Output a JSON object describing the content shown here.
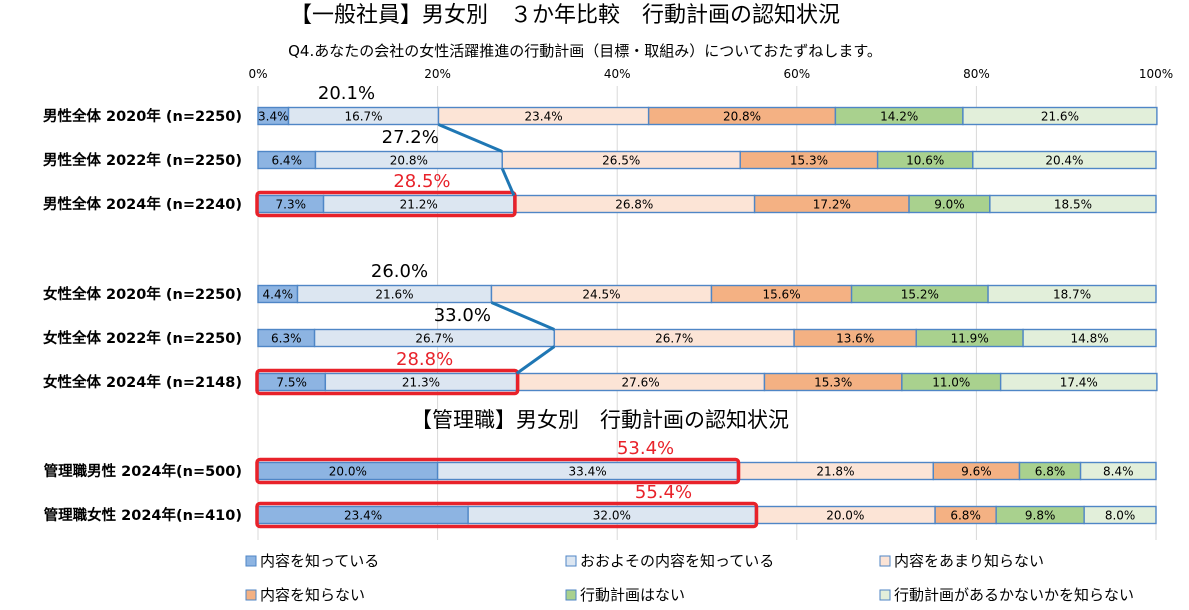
{
  "chart_data": {
    "type": "bar",
    "stacked": true,
    "orientation": "horizontal",
    "title": "【一般社員】男女別　３か年比較　行動計画の認知状況",
    "subtitle": "Q4.あなたの会社の女性活躍推進の行動計画（目標・取組み）についておたずねします。",
    "section2_title": "【管理職】男女別　行動計画の認知状況",
    "xlim": [
      0,
      100
    ],
    "xticks": [
      "0%",
      "20%",
      "40%",
      "60%",
      "80%",
      "100%"
    ],
    "grid": true,
    "legend_position": "bottom",
    "categories": [
      "男性全体 2020年 (n=2250)",
      "男性全体 2022年 (n=2250)",
      "男性全体 2024年 (n=2240)",
      "女性全体 2020年 (n=2250)",
      "女性全体 2022年 (n=2250)",
      "女性全体 2024年 (n=2148)",
      "管理職男性 2024年(n=500)",
      "管理職女性 2024年(n=410)"
    ],
    "series": [
      {
        "name": "内容を知っている",
        "color": "#8db4e2",
        "values": [
          3.4,
          6.4,
          7.3,
          4.4,
          6.3,
          7.5,
          20.0,
          23.4
        ]
      },
      {
        "name": "おおよその内容を知っている",
        "color": "#dce6f1",
        "values": [
          16.7,
          20.8,
          21.2,
          21.6,
          26.7,
          21.3,
          33.4,
          32.0
        ]
      },
      {
        "name": "内容をあまり知らない",
        "color": "#fce4d6",
        "values": [
          23.4,
          26.5,
          26.8,
          24.5,
          26.7,
          27.6,
          21.8,
          20.0
        ]
      },
      {
        "name": "内容を知らない",
        "color": "#f4b183",
        "values": [
          20.8,
          15.3,
          17.2,
          15.6,
          13.6,
          15.3,
          9.6,
          6.8
        ]
      },
      {
        "name": "行動計画はない",
        "color": "#a9d18e",
        "values": [
          14.2,
          10.6,
          9.0,
          15.2,
          11.9,
          11.0,
          6.8,
          9.8
        ]
      },
      {
        "name": "行動計画があるかないかを知らない",
        "color": "#e2efda",
        "values": [
          21.6,
          20.4,
          18.5,
          18.7,
          14.8,
          17.4,
          8.4,
          8.0
        ]
      }
    ],
    "value_labels": [
      [
        "3.4%",
        "16.7%",
        "23.4%",
        "20.8%",
        "14.2%",
        "21.6%"
      ],
      [
        "6.4%",
        "20.8%",
        "26.5%",
        "15.3%",
        "10.6%",
        "20.4%"
      ],
      [
        "7.3%",
        "21.2%",
        "26.8%",
        "17.2%",
        "9.0%",
        "18.5%"
      ],
      [
        "4.4%",
        "21.6%",
        "24.5%",
        "15.6%",
        "15.2%",
        "18.7%"
      ],
      [
        "6.3%",
        "26.7%",
        "26.7%",
        "13.6%",
        "11.9%",
        "14.8%"
      ],
      [
        "7.5%",
        "21.3%",
        "27.6%",
        "15.3%",
        "11.0%",
        "17.4%"
      ],
      [
        "20.0%",
        "33.4%",
        "21.8%",
        "9.6%",
        "6.8%",
        "8.4%"
      ],
      [
        "23.4%",
        "32.0%",
        "20.0%",
        "6.8%",
        "9.8%",
        "8.0%"
      ]
    ],
    "totals_known": [
      "20.1%",
      "27.2%",
      "28.5%",
      "26.0%",
      "33.0%",
      "28.8%",
      "53.4%",
      "55.4%"
    ],
    "totals_highlighted": [
      false,
      false,
      true,
      false,
      false,
      true,
      true,
      true
    ],
    "highlight_color": "#e8222a",
    "connector_color": "#1f77b4",
    "bar_border_color": "#4f86c6"
  }
}
